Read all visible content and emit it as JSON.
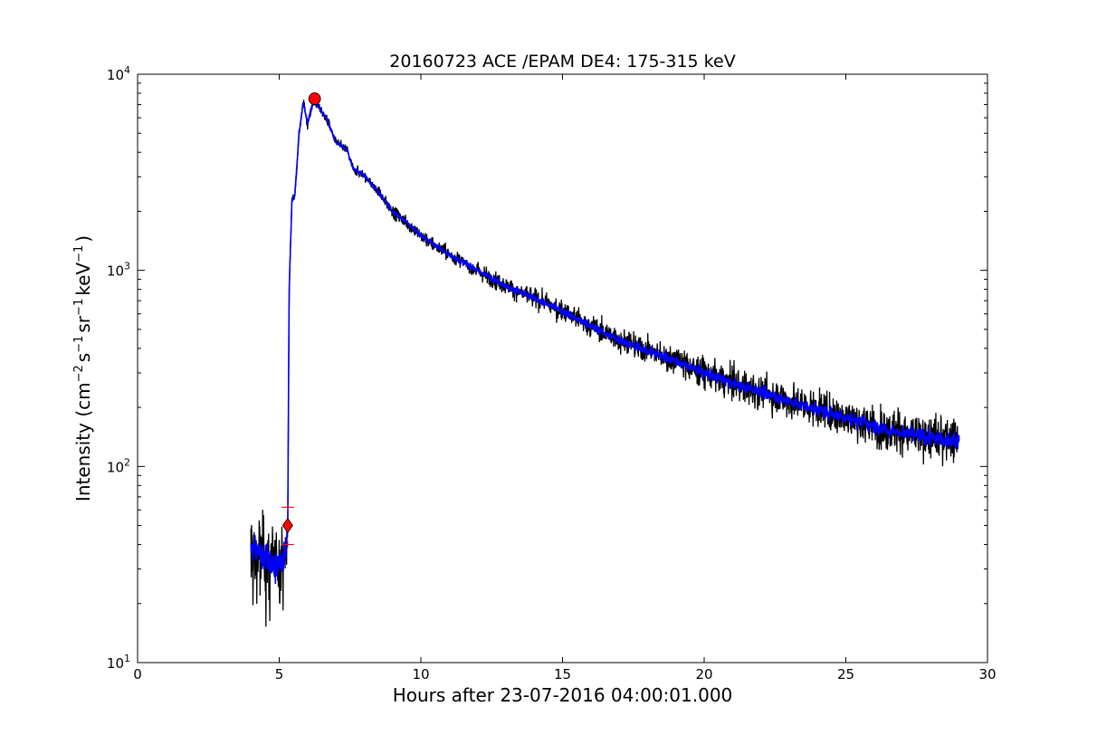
{
  "chart_data": {
    "type": "line",
    "title": "20160723 ACE /EPAM DE4: 175-315 keV",
    "xlabel": "Hours after 23-07-2016 04:00:01.000",
    "ylabel": {
      "prefix": "Intensity (cm",
      "cm_exp": "−2",
      "s_base": "s",
      "s_exp": "−1",
      "sr_base": "sr",
      "sr_exp": "−1",
      "kev_base": "keV",
      "kev_exp": "−1",
      "suffix": ")"
    },
    "xlim": [
      0,
      30
    ],
    "ylim": [
      10,
      10000
    ],
    "yscale": "log",
    "grid": false,
    "x_ticks": [
      0,
      5,
      10,
      15,
      20,
      25,
      30
    ],
    "x_tick_labels": [
      "0",
      "5",
      "10",
      "15",
      "20",
      "25",
      "30"
    ],
    "y_ticks": [
      10,
      100,
      1000,
      10000
    ],
    "y_tick_labels": [
      {
        "base": "10",
        "exp": "1"
      },
      {
        "base": "10",
        "exp": "2"
      },
      {
        "base": "10",
        "exp": "3"
      },
      {
        "base": "10",
        "exp": "4"
      }
    ],
    "series": [
      {
        "color": "#000000",
        "style": "raw",
        "x_start": 4.0,
        "x_end": 29.0,
        "profile_x": [
          4.0,
          4.5,
          4.8,
          5.0,
          5.2,
          5.3,
          5.35,
          5.45,
          5.55,
          5.7,
          5.85,
          6.0,
          6.2,
          6.4,
          6.7,
          7.0,
          7.4,
          7.6,
          8.0,
          8.5,
          9.0,
          9.5,
          10.0,
          11.0,
          12.0,
          13.0,
          14.0,
          15.0,
          16.0,
          17.0,
          18.0,
          19.0,
          20.0,
          21.0,
          22.0,
          23.0,
          24.0,
          25.0,
          26.0,
          27.0,
          28.0,
          29.0
        ],
        "profile_y": [
          38,
          35,
          30,
          33,
          34,
          48,
          800,
          2300,
          2400,
          5000,
          7200,
          5600,
          7300,
          6800,
          5800,
          4500,
          4100,
          3300,
          3050,
          2500,
          2000,
          1750,
          1500,
          1200,
          1000,
          830,
          720,
          620,
          520,
          440,
          390,
          345,
          300,
          265,
          240,
          215,
          195,
          178,
          160,
          148,
          140,
          135
        ]
      },
      {
        "color": "#0000ff",
        "style": "smoothed",
        "x_start": 4.0,
        "x_end": 29.0
      }
    ],
    "markers": [
      {
        "type": "circle",
        "x": 6.25,
        "y": 7500,
        "color": "#ff0000"
      },
      {
        "type": "diamond",
        "x": 5.3,
        "y": 50,
        "color": "#ff0000"
      },
      {
        "type": "plus",
        "x": 5.3,
        "y": 62,
        "color": "#ff0000"
      },
      {
        "type": "plus",
        "x": 5.3,
        "y": 40,
        "color": "#ff0000"
      }
    ]
  }
}
